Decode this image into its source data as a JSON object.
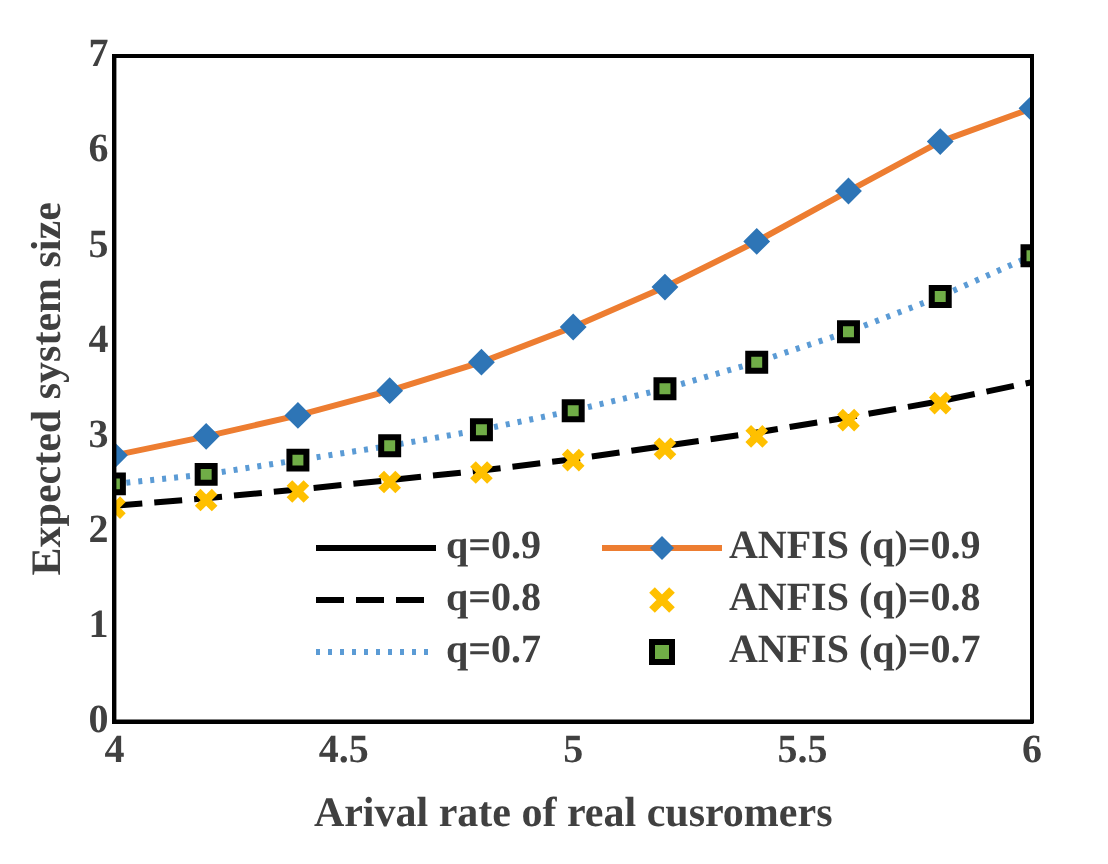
{
  "chart_data": {
    "type": "line",
    "xlabel": "Arival rate of real cusromers",
    "ylabel": "Expected system size",
    "x": [
      4,
      4.2,
      4.4,
      4.6,
      4.8,
      5,
      5.2,
      5.4,
      5.6,
      5.8,
      6
    ],
    "xlim": [
      4,
      6
    ],
    "xticks": [
      4,
      {
        "value": 4.5,
        "label": "4.5"
      },
      5,
      {
        "value": 5.5,
        "label": "5.5"
      },
      6
    ],
    "ylim": [
      0,
      7
    ],
    "yticks": [
      0,
      1,
      2,
      3,
      4,
      5,
      6,
      7
    ],
    "grid": false,
    "legend": "bottom",
    "series": [
      {
        "name": "q=0.9",
        "color": "#000000",
        "line_style": "solid",
        "marker": "none",
        "values": [
          null,
          null,
          null,
          null,
          null,
          null,
          null,
          null,
          null,
          null,
          null
        ]
      },
      {
        "name": "q=0.8",
        "color": "#000000",
        "line_style": "dashed",
        "marker": "none",
        "values": [
          2.27,
          2.35,
          2.44,
          2.54,
          2.64,
          2.76,
          2.9,
          3.04,
          3.2,
          3.37,
          3.57
        ]
      },
      {
        "name": "q=0.7",
        "color": "#5b9bd5",
        "line_style": "dotted",
        "marker": "none",
        "values": [
          2.5,
          2.6,
          2.75,
          2.9,
          3.07,
          3.27,
          3.5,
          3.78,
          4.1,
          4.47,
          4.9
        ]
      },
      {
        "name": "ANFIS (q)=0.9",
        "color": "#ed7d31",
        "line_style": "solid",
        "marker": "diamond",
        "values": [
          2.8,
          3.0,
          3.22,
          3.48,
          3.78,
          4.15,
          4.57,
          5.05,
          5.58,
          6.1,
          6.45
        ]
      },
      {
        "name": "ANFIS (q)=0.8",
        "type": "scatter",
        "color": "#ffc000",
        "marker": "cross",
        "values": [
          2.25,
          2.33,
          2.42,
          2.52,
          2.62,
          2.75,
          2.87,
          3.0,
          3.17,
          3.35,
          null
        ]
      },
      {
        "name": "ANFIS (q)=0.7",
        "type": "scatter",
        "color": "#70ad47",
        "marker": "square",
        "values": [
          2.5,
          2.6,
          2.75,
          2.9,
          3.07,
          3.27,
          3.5,
          3.78,
          4.1,
          4.47,
          4.9
        ]
      }
    ]
  }
}
